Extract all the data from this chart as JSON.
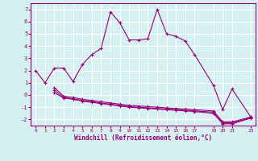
{
  "xlabel": "Windchill (Refroidissement éolien,°C)",
  "bg_color": "#d4f0f0",
  "grid_color": "#ffffff",
  "line_color": "#990077",
  "xlim": [
    -0.5,
    23.5
  ],
  "ylim": [
    -2.5,
    7.5
  ],
  "xticks": [
    0,
    1,
    2,
    3,
    4,
    5,
    6,
    7,
    8,
    9,
    10,
    11,
    12,
    13,
    14,
    15,
    16,
    17,
    19,
    20,
    21,
    23
  ],
  "yticks": [
    -2,
    -1,
    0,
    1,
    2,
    3,
    4,
    5,
    6,
    7
  ],
  "series": [
    {
      "x": [
        0,
        1,
        2,
        3,
        4,
        5,
        6,
        7,
        8,
        9,
        10,
        11,
        12,
        13,
        14,
        15,
        16,
        17,
        19,
        20,
        21,
        23
      ],
      "y": [
        2.0,
        1.0,
        2.2,
        2.2,
        1.1,
        2.5,
        3.3,
        3.8,
        6.8,
        5.9,
        4.5,
        4.5,
        4.6,
        7.0,
        5.0,
        4.8,
        4.4,
        3.3,
        0.8,
        -1.2,
        0.5,
        -1.8
      ]
    },
    {
      "x": [
        2,
        3,
        4,
        5,
        6,
        7,
        8,
        9,
        10,
        11,
        12,
        13,
        14,
        15,
        16,
        17,
        19,
        20,
        21,
        23
      ],
      "y": [
        0.6,
        -0.1,
        -0.2,
        -0.35,
        -0.45,
        -0.55,
        -0.65,
        -0.75,
        -0.85,
        -0.9,
        -0.95,
        -1.0,
        -1.05,
        -1.1,
        -1.15,
        -1.2,
        -1.3,
        -2.2,
        -2.2,
        -1.8
      ]
    },
    {
      "x": [
        2,
        3,
        4,
        5,
        6,
        7,
        8,
        9,
        10,
        11,
        12,
        13,
        14,
        15,
        16,
        17,
        19,
        20,
        21,
        23
      ],
      "y": [
        0.4,
        -0.2,
        -0.3,
        -0.45,
        -0.55,
        -0.65,
        -0.75,
        -0.85,
        -0.95,
        -1.0,
        -1.05,
        -1.1,
        -1.15,
        -1.2,
        -1.25,
        -1.3,
        -1.4,
        -2.28,
        -2.28,
        -1.85
      ]
    },
    {
      "x": [
        2,
        3,
        4,
        5,
        6,
        7,
        8,
        9,
        10,
        11,
        12,
        13,
        14,
        15,
        16,
        17,
        19,
        20,
        21,
        23
      ],
      "y": [
        0.2,
        -0.25,
        -0.35,
        -0.5,
        -0.6,
        -0.7,
        -0.8,
        -0.9,
        -1.0,
        -1.05,
        -1.1,
        -1.15,
        -1.2,
        -1.25,
        -1.3,
        -1.35,
        -1.5,
        -2.35,
        -2.35,
        -1.9
      ]
    }
  ]
}
